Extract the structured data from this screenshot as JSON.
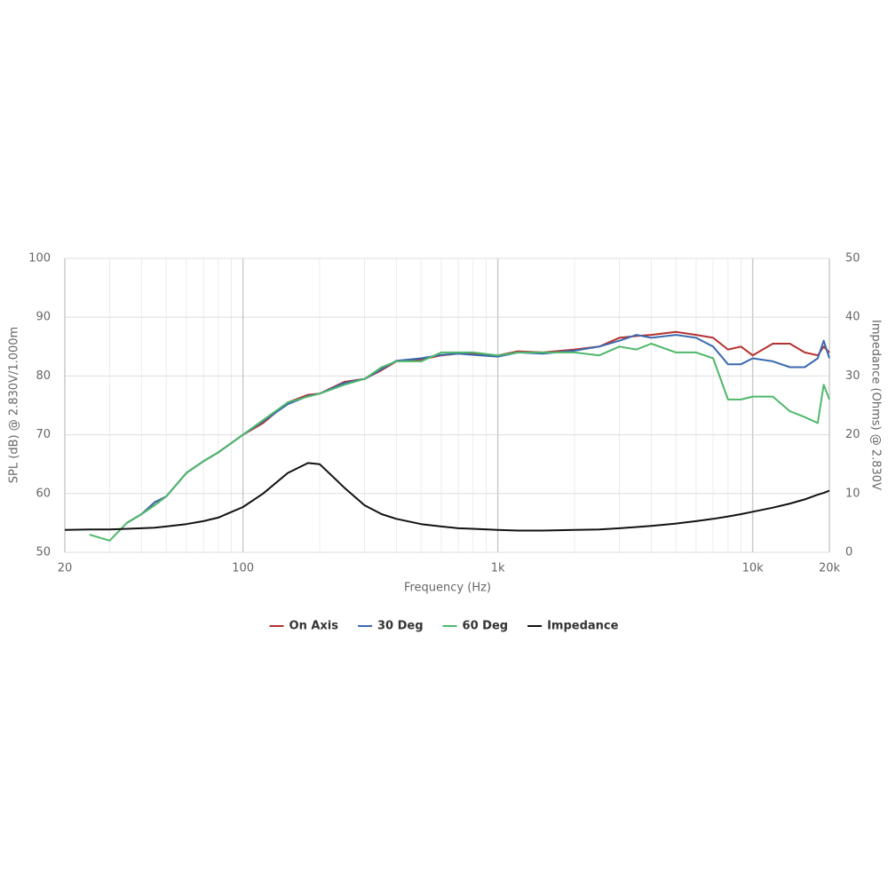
{
  "chart_data": {
    "type": "line",
    "x_scale": "log",
    "grid": true,
    "minor_grid": true,
    "legend_position": "bottom",
    "xlabel": "Frequency (Hz)",
    "ylabel": "SPL (dB) @ 2.830V/1.000m",
    "y2label": "Impedance (Ohms) @ 2.830V",
    "xlim": [
      20,
      20000
    ],
    "xticks": [
      20,
      100,
      {
        "value": 1000,
        "label": "1k"
      },
      {
        "value": 10000,
        "label": "10k"
      },
      {
        "value": 20000,
        "label": "20k"
      }
    ],
    "ylim": [
      50,
      100
    ],
    "yticks": [
      50,
      60,
      70,
      80,
      90,
      100
    ],
    "y2lim": [
      0,
      50
    ],
    "y2ticks": [
      0,
      10,
      20,
      30,
      40,
      50
    ],
    "x": [
      20,
      25,
      30,
      35,
      40,
      45,
      50,
      60,
      70,
      80,
      100,
      120,
      150,
      180,
      200,
      250,
      300,
      350,
      400,
      500,
      600,
      700,
      800,
      1000,
      1200,
      1500,
      2000,
      2500,
      3000,
      3500,
      4000,
      5000,
      6000,
      7000,
      8000,
      9000,
      10000,
      12000,
      14000,
      16000,
      18000,
      19000,
      20000
    ],
    "series": [
      {
        "name": "On Axis",
        "color": "#b5312f",
        "values": [
          null,
          null,
          null,
          55,
          56.5,
          58.5,
          59.5,
          63.5,
          65.5,
          67,
          70,
          72,
          75.5,
          76.8,
          77,
          79,
          79.5,
          81,
          82.5,
          82.8,
          83.5,
          83.8,
          83.8,
          83.5,
          84.2,
          84,
          84.5,
          85,
          86.5,
          86.8,
          87,
          87.5,
          87,
          86.5,
          84.5,
          85,
          83.5,
          85.5,
          85.5,
          84,
          83.5,
          85,
          84
        ]
      },
      {
        "name": "30 Deg",
        "color": "#3a6ab0",
        "values": [
          null,
          null,
          null,
          55,
          56.5,
          58.5,
          59.5,
          63.5,
          65.5,
          67,
          70,
          72.3,
          75.2,
          76.6,
          77,
          78.8,
          79.5,
          81.2,
          82.6,
          83,
          83.6,
          83.8,
          83.6,
          83.3,
          84,
          83.8,
          84.3,
          85,
          86,
          87,
          86.5,
          87,
          86.5,
          85,
          82,
          82,
          83,
          82.5,
          81.5,
          81.5,
          83,
          86,
          83
        ]
      },
      {
        "name": "60 Deg",
        "color": "#4fb86a",
        "values": [
          null,
          53,
          52,
          55,
          56.5,
          58,
          59.5,
          63.5,
          65.5,
          67,
          70,
          72.5,
          75.5,
          76.5,
          77,
          78.5,
          79.5,
          81.5,
          82.5,
          82.5,
          84,
          84,
          84,
          83.5,
          84,
          84,
          84,
          83.5,
          85,
          84.5,
          85.5,
          84,
          84,
          83,
          76,
          76,
          76.5,
          76.5,
          74,
          73,
          72,
          78.5,
          76
        ]
      },
      {
        "name": "Impedance",
        "color": "#111111",
        "axis": "y2",
        "values": [
          3.8,
          3.9,
          3.9,
          4.0,
          4.1,
          4.2,
          4.4,
          4.8,
          5.3,
          5.9,
          7.7,
          10,
          13.5,
          15.2,
          15,
          11,
          8,
          6.5,
          5.7,
          4.8,
          4.4,
          4.1,
          4.0,
          3.8,
          3.7,
          3.7,
          3.8,
          3.9,
          4.1,
          4.3,
          4.5,
          4.9,
          5.3,
          5.7,
          6.1,
          6.5,
          6.9,
          7.6,
          8.3,
          9.0,
          9.8,
          10.1,
          10.5
        ]
      }
    ]
  }
}
